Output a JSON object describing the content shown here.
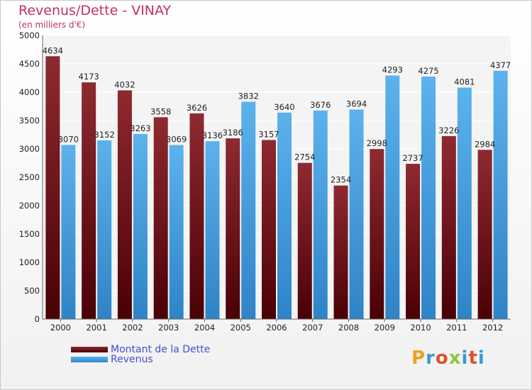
{
  "chart_data": {
    "type": "bar",
    "title": "Revenus/Dette - VINAY",
    "subtitle": "(en milliers d'€)",
    "categories": [
      "2000",
      "2001",
      "2002",
      "2003",
      "2004",
      "2005",
      "2006",
      "2007",
      "2008",
      "2009",
      "2010",
      "2011",
      "2012"
    ],
    "series": [
      {
        "name": "Montant de la Dette",
        "color": "#7a1a1f",
        "values": [
          4634,
          4173,
          4032,
          3558,
          3626,
          3186,
          3157,
          2754,
          2354,
          2998,
          2737,
          3226,
          2984
        ]
      },
      {
        "name": "Revenus",
        "color": "#4aa4e4",
        "values": [
          3070,
          3152,
          3263,
          3069,
          3136,
          3832,
          3640,
          3676,
          3694,
          4293,
          4275,
          4081,
          4377
        ]
      }
    ],
    "ylim": [
      0,
      5000
    ],
    "yticks": [
      0,
      500,
      1000,
      1500,
      2000,
      2500,
      3000,
      3500,
      4000,
      4500,
      5000
    ],
    "grid": true,
    "legend_position": "bottom-left"
  },
  "logo": {
    "text": "Proxiti"
  }
}
